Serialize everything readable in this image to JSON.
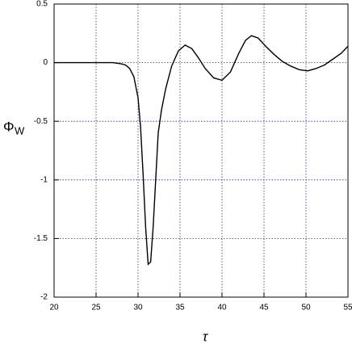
{
  "chart_data": {
    "type": "line",
    "ylabel": "Φ",
    "ylabel_subscript": "W",
    "xlabel": "τ",
    "x": [
      20,
      22,
      24,
      26,
      27,
      28,
      28.5,
      29,
      29.5,
      30,
      30.3,
      30.6,
      30.9,
      31.2,
      31.5,
      31.8,
      32.1,
      32.4,
      32.8,
      33.3,
      34,
      34.8,
      35.6,
      36.4,
      37.2,
      38,
      39,
      40,
      41,
      42,
      42.8,
      43.5,
      44.3,
      45.2,
      46.2,
      47.2,
      48.2,
      49.2,
      50.2,
      51.2,
      52.2,
      53.2,
      54.2,
      55
    ],
    "series": [
      {
        "name": "Φw",
        "color": "#000000",
        "values": [
          0,
          0,
          0,
          0,
          0,
          -0.01,
          -0.02,
          -0.05,
          -0.12,
          -0.3,
          -0.55,
          -0.95,
          -1.4,
          -1.72,
          -1.7,
          -1.4,
          -1.0,
          -0.6,
          -0.4,
          -0.22,
          -0.03,
          0.1,
          0.15,
          0.12,
          0.04,
          -0.05,
          -0.13,
          -0.15,
          -0.08,
          0.08,
          0.19,
          0.23,
          0.21,
          0.14,
          0.07,
          0.01,
          -0.03,
          -0.06,
          -0.07,
          -0.05,
          -0.02,
          0.03,
          0.08,
          0.14
        ]
      }
    ],
    "xlim": [
      20,
      55
    ],
    "ylim": [
      -2,
      0.5
    ],
    "xticks": [
      20,
      25,
      30,
      35,
      40,
      45,
      50,
      55
    ],
    "yticks": [
      0.5,
      0,
      -0.5,
      -1,
      -1.5,
      -2
    ],
    "grid": true
  }
}
